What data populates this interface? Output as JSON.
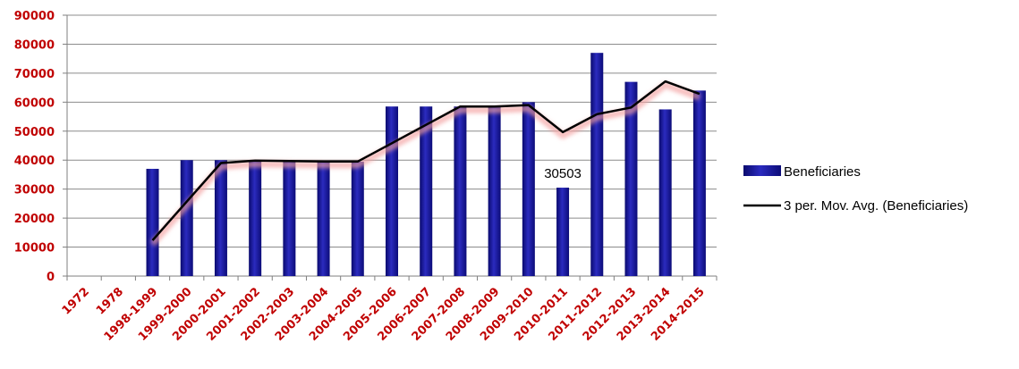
{
  "chart_data": {
    "type": "bar",
    "categories": [
      "1972",
      "1978",
      "1998-1999",
      "1999-2000",
      "2000-2001",
      "2001-2002",
      "2002-2003",
      "2003-2004",
      "2004-2005",
      "2005-2006",
      "2006-2007",
      "2007-2008",
      "2008-2009",
      "2009-2010",
      "2010-2011",
      "2011-2012",
      "2012-2013",
      "2013-2014",
      "2014-2015"
    ],
    "series": [
      {
        "name": "Beneficiaries",
        "type": "bar",
        "color": "#1f1f9c",
        "values": [
          0,
          0,
          37000,
          40000,
          40000,
          39500,
          39500,
          39500,
          39500,
          58500,
          58500,
          58500,
          58500,
          60000,
          30503,
          77000,
          67000,
          57500,
          64000
        ]
      },
      {
        "name": "3 per. Mov. Avg. (Beneficiaries)",
        "type": "line",
        "color": "#000000",
        "values": [
          null,
          null,
          12333,
          25667,
          39000,
          39833,
          39667,
          39500,
          39500,
          45833,
          52167,
          58500,
          58500,
          59000,
          49668,
          55834,
          58168,
          67167,
          62833
        ]
      }
    ],
    "data_labels": [
      {
        "category": "2010-2011",
        "text": "30503"
      }
    ],
    "ylim": [
      0,
      90000
    ],
    "yticks": [
      "0",
      "10000",
      "20000",
      "30000",
      "40000",
      "50000",
      "60000",
      "70000",
      "80000",
      "90000"
    ],
    "grid": true,
    "legend_position": "right",
    "title": "",
    "xlabel": "",
    "ylabel": ""
  }
}
